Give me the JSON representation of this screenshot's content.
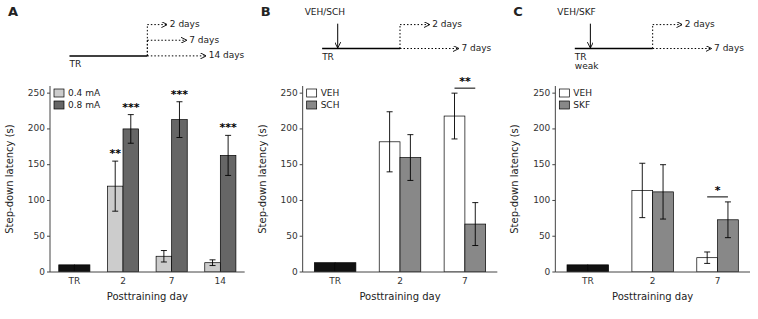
{
  "chart_data": [
    {
      "type": "bar",
      "title": "A",
      "categories": [
        "TR",
        "2",
        "7",
        "14"
      ],
      "series": [
        {
          "name": "0.4 mA",
          "color": "#cccccc",
          "colors": [
            "#111111",
            "#cccccc",
            "#cccccc",
            "#cccccc"
          ],
          "values": [
            10,
            120,
            22,
            13
          ],
          "errors": [
            null,
            35,
            8,
            4
          ]
        },
        {
          "name": "0.8 mA",
          "color": "#666666",
          "colors": [
            "#111111",
            "#666666",
            "#666666",
            "#666666"
          ],
          "values": [
            10,
            200,
            213,
            163
          ],
          "errors": [
            null,
            20,
            25,
            28
          ]
        }
      ],
      "xlabel": "Posttraining day",
      "ylabel": "Step-down latency (s)",
      "ylim": [
        0,
        260
      ],
      "yticks": [
        0,
        50,
        100,
        150,
        200,
        250
      ],
      "legend": "upper left",
      "grid": false,
      "annotations": [
        {
          "text": "TR",
          "category": "TR"
        },
        {
          "text": "2 days",
          "category": "2"
        },
        {
          "text": "7 days",
          "category": "7"
        },
        {
          "text": "14 days",
          "category": "14"
        },
        {
          "text": "**",
          "category": "2",
          "series": [
            "0.4 mA"
          ]
        },
        {
          "text": "***",
          "category": "2",
          "series": [
            "0.8 mA"
          ]
        },
        {
          "text": "***",
          "category": "7",
          "series": [
            "0.8 mA"
          ]
        },
        {
          "text": "***",
          "category": "14",
          "series": [
            "0.8 mA"
          ]
        }
      ]
    },
    {
      "type": "bar",
      "title": "B",
      "categories": [
        "TR",
        "2",
        "7"
      ],
      "series": [
        {
          "name": "VEH",
          "color": "#ffffff",
          "colors": [
            "#111111",
            "#ffffff",
            "#ffffff"
          ],
          "values": [
            13,
            182,
            218
          ],
          "errors": [
            null,
            42,
            32
          ]
        },
        {
          "name": "SCH",
          "color": "#888888",
          "colors": [
            "#111111",
            "#888888",
            "#888888"
          ],
          "values": [
            13,
            160,
            67
          ],
          "errors": [
            null,
            32,
            30
          ]
        }
      ],
      "xlabel": "Posttraining day",
      "ylabel": "Step-down latency (s)",
      "ylim": [
        0,
        260
      ],
      "yticks": [
        0,
        50,
        100,
        150,
        200,
        250
      ],
      "legend": "upper left",
      "grid": false,
      "annotations": [
        {
          "text": "VEH/SCH"
        },
        {
          "text": "TR",
          "category": "TR"
        },
        {
          "text": "2 days",
          "category": "2"
        },
        {
          "text": "7 days",
          "category": "7"
        },
        {
          "text": "**",
          "category": "7",
          "series": [
            "VEH",
            "SCH"
          ]
        }
      ]
    },
    {
      "type": "bar",
      "title": "C",
      "categories": [
        "TR",
        "2",
        "7"
      ],
      "series": [
        {
          "name": "VEH",
          "color": "#ffffff",
          "colors": [
            "#111111",
            "#ffffff",
            "#ffffff"
          ],
          "values": [
            10,
            114,
            20
          ],
          "errors": [
            null,
            38,
            8
          ]
        },
        {
          "name": "SKF",
          "color": "#888888",
          "colors": [
            "#111111",
            "#888888",
            "#888888"
          ],
          "values": [
            10,
            112,
            73
          ],
          "errors": [
            null,
            38,
            25
          ]
        }
      ],
      "xlabel": "Posttraining day",
      "ylabel": "Step-down latency (s)",
      "ylim": [
        0,
        260
      ],
      "yticks": [
        0,
        50,
        100,
        150,
        200,
        250
      ],
      "legend": "upper left",
      "grid": false,
      "annotations": [
        {
          "text": "VEH/SKF"
        },
        {
          "text": "TR",
          "category": "TR"
        },
        {
          "text": "weak",
          "category": "TR"
        },
        {
          "text": "2 days",
          "category": "2"
        },
        {
          "text": "7 days",
          "category": "7"
        },
        {
          "text": "*",
          "category": "7",
          "series": [
            "VEH",
            "SKF"
          ]
        }
      ]
    }
  ]
}
